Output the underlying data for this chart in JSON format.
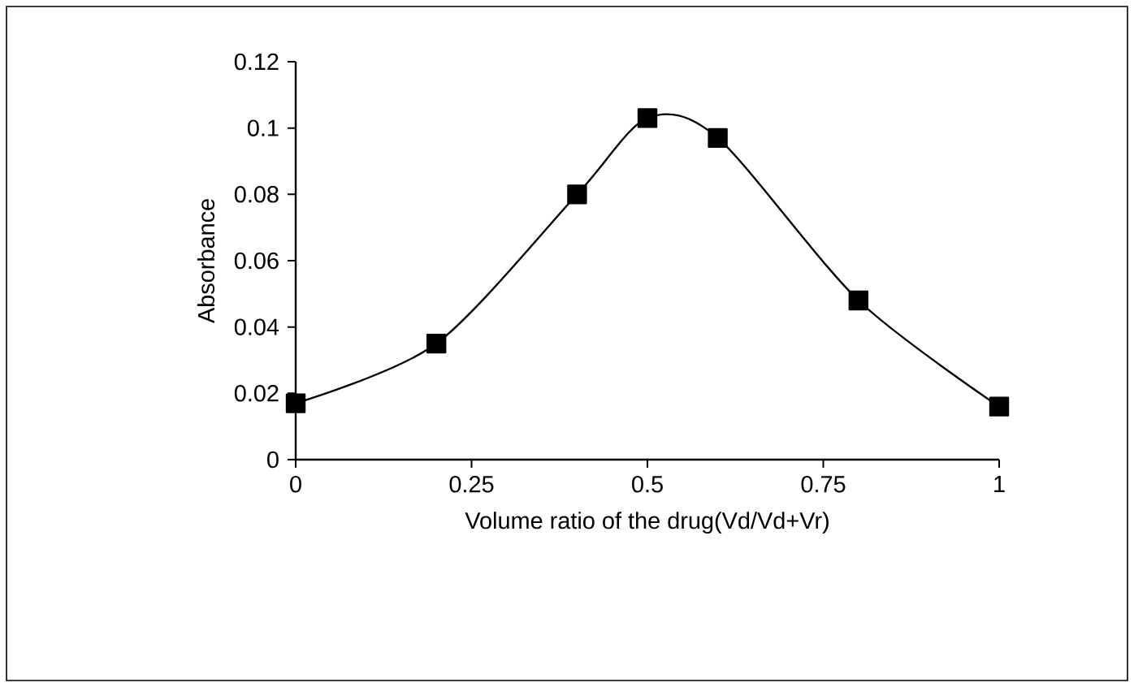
{
  "chart_data": {
    "type": "line",
    "xlabel": "Volume ratio of the drug(Vd/Vd+Vr)",
    "ylabel": "Absorbance",
    "x": [
      0,
      0.2,
      0.4,
      0.5,
      0.6,
      0.8,
      1
    ],
    "series": [
      {
        "color": "#000000",
        "values": [
          0.017,
          0.035,
          0.08,
          0.103,
          0.097,
          0.048,
          0.016
        ]
      }
    ],
    "xlim": [
      0,
      1
    ],
    "xticks": [
      0,
      0.25,
      0.5,
      0.75,
      1
    ],
    "ylim": [
      0,
      0.12
    ],
    "yticks": [
      0,
      0.02,
      0.04,
      0.06,
      0.08,
      0.1,
      0.12
    ],
    "marker": "square",
    "line_style": "solid",
    "grid": false
  }
}
